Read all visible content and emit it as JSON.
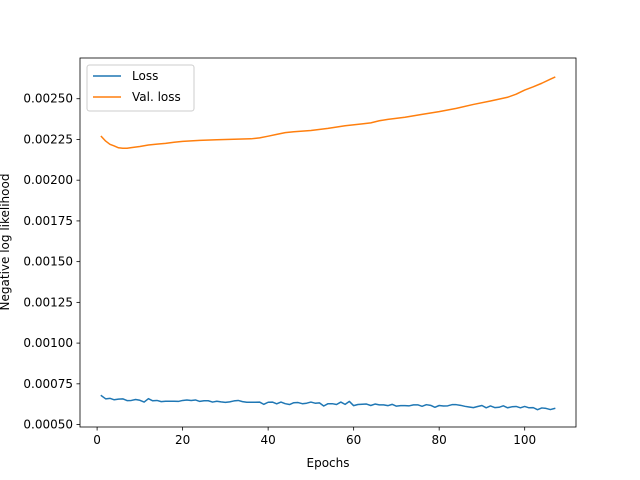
{
  "chart_data": {
    "type": "line",
    "xlabel": "Epochs",
    "ylabel": "Negative log likelihood",
    "xlim": [
      -4,
      112
    ],
    "ylim": [
      0.000485,
      0.00275
    ],
    "xticks": [
      0,
      20,
      40,
      60,
      80,
      100
    ],
    "xtick_labels": [
      "0",
      "20",
      "40",
      "60",
      "80",
      "100"
    ],
    "yticks": [
      0.0005,
      0.00075,
      0.001,
      0.00125,
      0.0015,
      0.00175,
      0.002,
      0.00225,
      0.0025
    ],
    "ytick_labels": [
      "0.00050",
      "0.00075",
      "0.00100",
      "0.00125",
      "0.00150",
      "0.00175",
      "0.00200",
      "0.00225",
      "0.00250"
    ],
    "grid": false,
    "legend": "top-left",
    "series": [
      {
        "name": "Loss",
        "color": "#1f77b4",
        "x": [
          1,
          2,
          3,
          4,
          5,
          6,
          7,
          8,
          9,
          10,
          11,
          12,
          13,
          14,
          15,
          16,
          17,
          18,
          19,
          20,
          21,
          22,
          23,
          24,
          25,
          26,
          27,
          28,
          29,
          30,
          31,
          32,
          33,
          34,
          35,
          36,
          37,
          38,
          39,
          40,
          41,
          42,
          43,
          44,
          45,
          46,
          47,
          48,
          49,
          50,
          51,
          52,
          53,
          54,
          55,
          56,
          57,
          58,
          59,
          60,
          61,
          62,
          63,
          64,
          65,
          66,
          67,
          68,
          69,
          70,
          71,
          72,
          73,
          74,
          75,
          76,
          77,
          78,
          79,
          80,
          81,
          82,
          83,
          84,
          85,
          86,
          87,
          88,
          89,
          90,
          91,
          92,
          93,
          94,
          95,
          96,
          97,
          98,
          99,
          100,
          101,
          102,
          103,
          104,
          105,
          106,
          107
        ],
        "y": [
          0.000677,
          0.000658,
          0.000661,
          0.000652,
          0.000656,
          0.000658,
          0.000647,
          0.000648,
          0.000654,
          0.000649,
          0.000638,
          0.000659,
          0.000646,
          0.000648,
          0.000641,
          0.000643,
          0.000643,
          0.000643,
          0.000642,
          0.000648,
          0.000651,
          0.000648,
          0.000651,
          0.000642,
          0.000646,
          0.000646,
          0.000638,
          0.000643,
          0.000639,
          0.000636,
          0.000639,
          0.000645,
          0.000648,
          0.000641,
          0.000637,
          0.000637,
          0.000637,
          0.000638,
          0.000624,
          0.000637,
          0.000638,
          0.000627,
          0.000638,
          0.000628,
          0.000623,
          0.000634,
          0.000635,
          0.000628,
          0.000631,
          0.000638,
          0.000631,
          0.000633,
          0.000614,
          0.000628,
          0.000628,
          0.000623,
          0.000638,
          0.000624,
          0.000642,
          0.000616,
          0.000623,
          0.000625,
          0.000626,
          0.000617,
          0.000626,
          0.000621,
          0.000621,
          0.000616,
          0.000624,
          0.000613,
          0.000616,
          0.000616,
          0.000615,
          0.000621,
          0.000621,
          0.000612,
          0.000622,
          0.000618,
          0.000606,
          0.000617,
          0.000614,
          0.000615,
          0.000622,
          0.000622,
          0.000618,
          0.000612,
          0.000608,
          0.000604,
          0.000611,
          0.000617,
          0.000603,
          0.000614,
          0.000604,
          0.000606,
          0.000615,
          0.000603,
          0.000609,
          0.000611,
          0.000603,
          0.000611,
          0.000603,
          0.000604,
          0.000591,
          0.000602,
          0.000599,
          0.000592,
          0.000599
        ]
      },
      {
        "name": "Val. loss",
        "color": "#ff7f0e",
        "x": [
          1,
          2,
          3,
          4,
          5,
          6,
          7,
          8,
          10,
          12,
          14,
          16,
          18,
          20,
          24,
          28,
          32,
          36,
          38,
          40,
          42,
          44,
          46,
          50,
          54,
          58,
          62,
          64,
          66,
          68,
          72,
          76,
          80,
          84,
          88,
          92,
          96,
          98,
          100,
          102,
          104,
          106,
          107
        ],
        "y": [
          0.002268,
          0.00224,
          0.00222,
          0.00221,
          0.002199,
          0.002196,
          0.002196,
          0.0022,
          0.002207,
          0.002216,
          0.002221,
          0.002226,
          0.002233,
          0.002238,
          0.002244,
          0.002248,
          0.002251,
          0.002254,
          0.00226,
          0.00227,
          0.002281,
          0.002292,
          0.002297,
          0.002305,
          0.002318,
          0.002334,
          0.002346,
          0.002352,
          0.002365,
          0.002373,
          0.002386,
          0.002404,
          0.002421,
          0.002441,
          0.002465,
          0.002486,
          0.002509,
          0.002528,
          0.002553,
          0.002573,
          0.002595,
          0.00262,
          0.002632
        ]
      }
    ]
  }
}
